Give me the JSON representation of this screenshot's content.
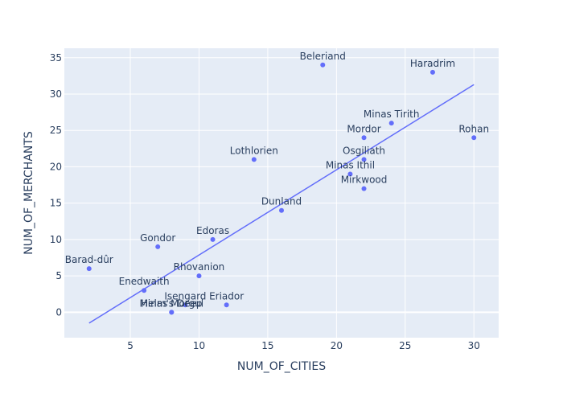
{
  "chart_data": {
    "type": "scatter",
    "xlabel": "NUM_OF_CITIES",
    "ylabel": "NUM_OF_MERCHANTS",
    "xlim": [
      0.2,
      31.8
    ],
    "ylim": [
      -3.5,
      36.3
    ],
    "xticks": [
      5,
      10,
      15,
      20,
      25,
      30
    ],
    "yticks": [
      0,
      5,
      10,
      15,
      20,
      25,
      30,
      35
    ],
    "grid": true,
    "colors": {
      "plot_bg": "#E5ECF6",
      "grid": "#ffffff",
      "marker": "#636EFA",
      "trendline": "#636EFA",
      "text": "#2a3f5f"
    },
    "points": [
      {
        "label": "Barad-dûr",
        "x": 2,
        "y": 6
      },
      {
        "label": "Enedwaith",
        "x": 6,
        "y": 3
      },
      {
        "label": "Gondor",
        "x": 7,
        "y": 9
      },
      {
        "label": "Helm's Deep",
        "x": 8,
        "y": 0
      },
      {
        "label": "Minas Morgul",
        "x": 8,
        "y": 0
      },
      {
        "label": "Isengard",
        "x": 9,
        "y": 1
      },
      {
        "label": "Rhovanion",
        "x": 10,
        "y": 5
      },
      {
        "label": "Edoras",
        "x": 11,
        "y": 10
      },
      {
        "label": "Eriador",
        "x": 12,
        "y": 1
      },
      {
        "label": "Lothlorien",
        "x": 14,
        "y": 21
      },
      {
        "label": "Dunland",
        "x": 16,
        "y": 14
      },
      {
        "label": "Beleriand",
        "x": 19,
        "y": 34
      },
      {
        "label": "Minas Ithil",
        "x": 21,
        "y": 19
      },
      {
        "label": "Mordor",
        "x": 22,
        "y": 24
      },
      {
        "label": "Osgiliath",
        "x": 22,
        "y": 21
      },
      {
        "label": "Mirkwood",
        "x": 22,
        "y": 17
      },
      {
        "label": "Minas Tirith",
        "x": 24,
        "y": 26
      },
      {
        "label": "Haradrim",
        "x": 27,
        "y": 33
      },
      {
        "label": "Rohan",
        "x": 30,
        "y": 24
      }
    ],
    "trendline": {
      "x": [
        2,
        30
      ],
      "y": [
        -1.5,
        31.3
      ]
    }
  }
}
